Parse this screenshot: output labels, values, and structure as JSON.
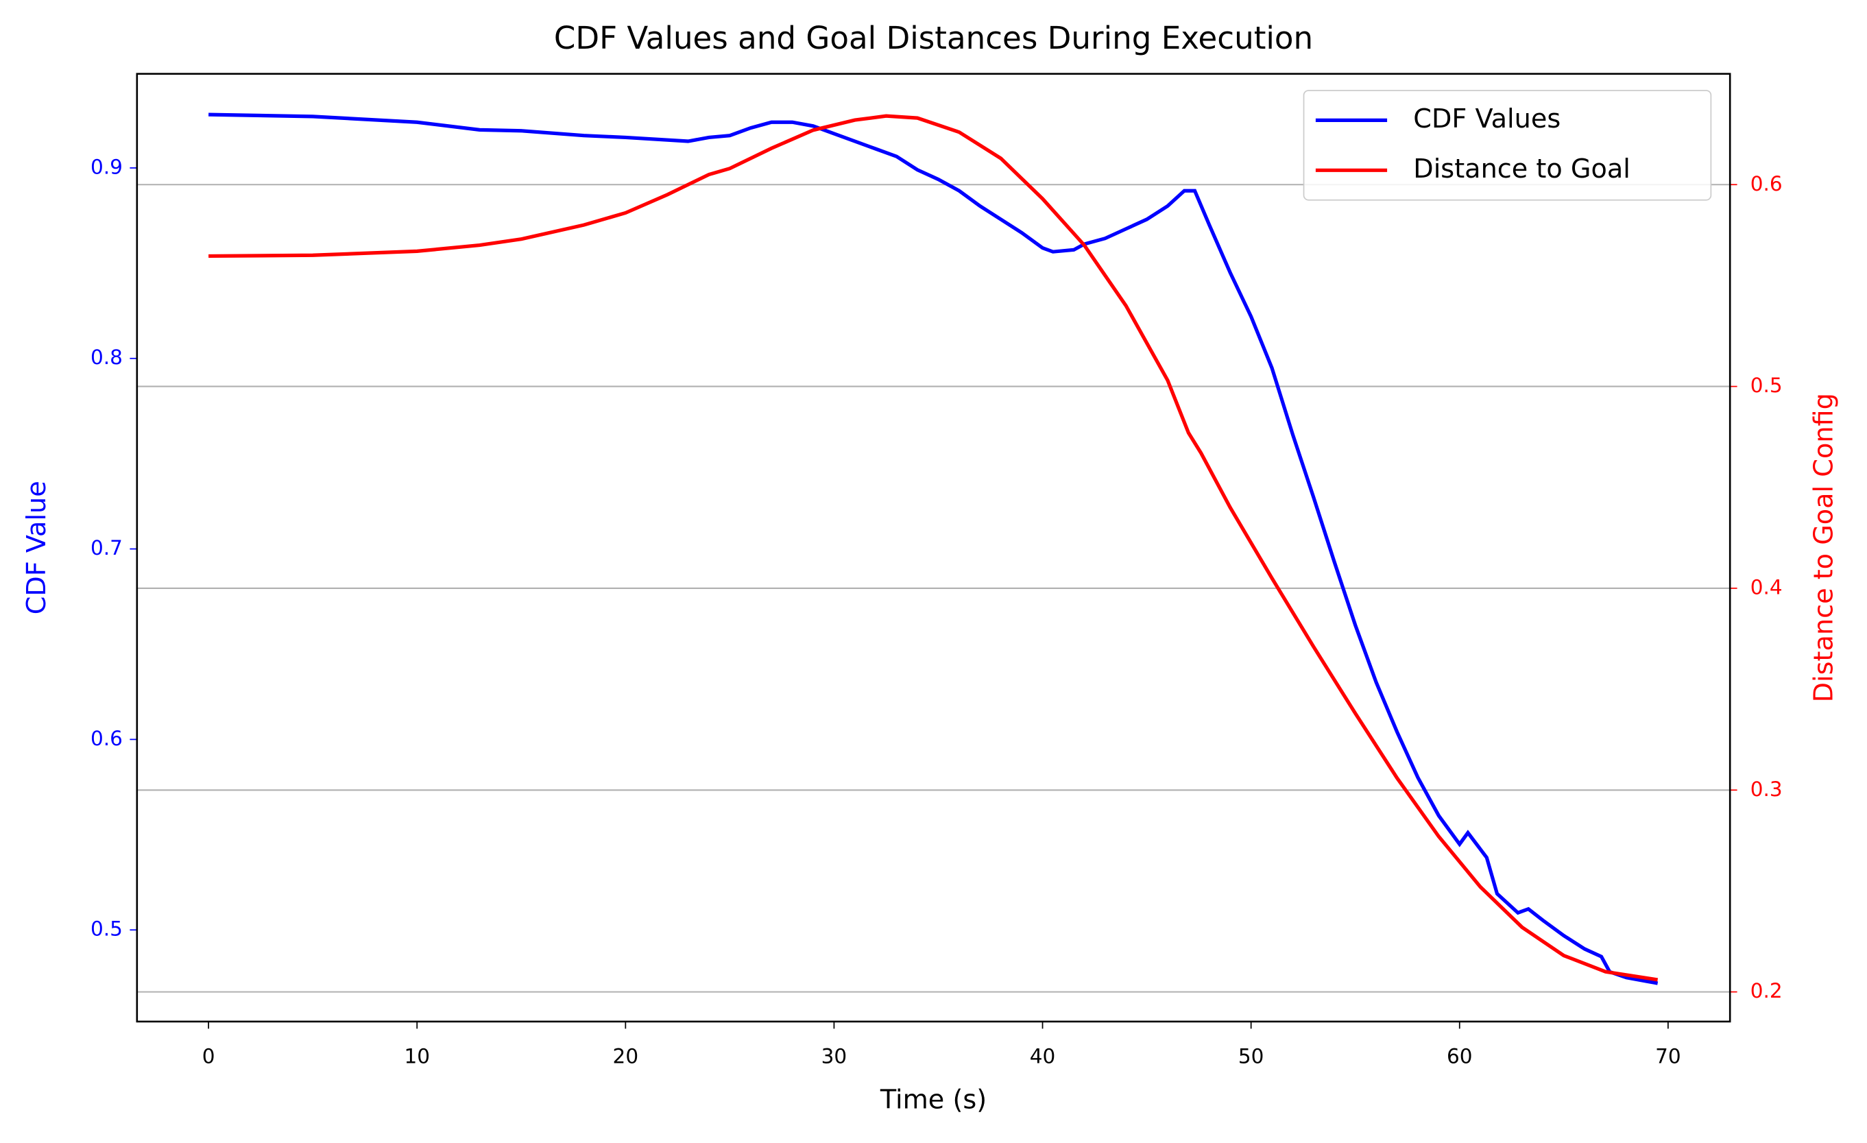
{
  "chart_data": {
    "type": "line",
    "title": "CDF Values and Goal Distances During Execution",
    "xlabel": "Time (s)",
    "ylabel": "CDF Value",
    "y2label": "Distance to Goal Config",
    "ylabel_color": "blue",
    "y2label_color": "red",
    "xlim": [
      -3.43,
      72.97
    ],
    "xticks": [
      0,
      10,
      20,
      30,
      40,
      50,
      60,
      70
    ],
    "ylim": [
      0.4519,
      0.9494
    ],
    "yticks": [
      0.5,
      0.6,
      0.7,
      0.8,
      0.9
    ],
    "y2lim": [
      0.1853,
      0.6549
    ],
    "y2ticks": [
      0.2,
      0.3,
      0.4,
      0.5,
      0.6
    ],
    "grid": "y2",
    "legend": "upper right",
    "series": [
      {
        "name": "CDF Values",
        "color": "blue",
        "x": [
          0,
          5,
          10,
          13,
          15,
          18,
          20,
          23,
          24,
          25,
          26,
          27,
          28,
          29,
          30,
          32,
          33,
          34,
          35,
          36,
          37,
          38,
          39,
          40,
          40.5,
          41.5,
          42,
          43,
          44,
          45,
          46,
          46.8,
          47.3,
          48,
          49,
          50,
          51,
          52,
          53,
          54,
          55,
          56,
          57,
          58,
          59,
          60,
          60.4,
          61.3,
          61.8,
          62.8,
          63.3,
          64,
          65,
          66,
          66.8,
          67.2,
          68,
          69,
          69.5
        ],
        "values": [
          0.928,
          0.927,
          0.924,
          0.92,
          0.9195,
          0.917,
          0.916,
          0.914,
          0.916,
          0.917,
          0.921,
          0.924,
          0.924,
          0.922,
          0.918,
          0.91,
          0.906,
          0.899,
          0.894,
          0.888,
          0.88,
          0.873,
          0.866,
          0.858,
          0.856,
          0.857,
          0.86,
          0.863,
          0.868,
          0.873,
          0.88,
          0.888,
          0.888,
          0.87,
          0.845,
          0.822,
          0.795,
          0.76,
          0.727,
          0.693,
          0.66,
          0.63,
          0.604,
          0.58,
          0.56,
          0.545,
          0.551,
          0.538,
          0.519,
          0.509,
          0.511,
          0.505,
          0.497,
          0.49,
          0.486,
          0.478,
          0.475,
          0.473,
          0.472
        ]
      },
      {
        "name": "Distance to Goal",
        "color": "red",
        "axis": "y2",
        "x": [
          0,
          5,
          10,
          13,
          15,
          18,
          20,
          22,
          24,
          25,
          27,
          29,
          31,
          32.5,
          34,
          36,
          38,
          40,
          42,
          44,
          46,
          47,
          47.6,
          49,
          51,
          53,
          55,
          57,
          59,
          61,
          63,
          65,
          67,
          69.5
        ],
        "values": [
          0.5646,
          0.565,
          0.567,
          0.57,
          0.573,
          0.58,
          0.586,
          0.595,
          0.605,
          0.608,
          0.618,
          0.627,
          0.632,
          0.634,
          0.633,
          0.626,
          0.613,
          0.593,
          0.57,
          0.54,
          0.503,
          0.477,
          0.467,
          0.44,
          0.405,
          0.371,
          0.338,
          0.306,
          0.277,
          0.252,
          0.232,
          0.218,
          0.21,
          0.206
        ]
      }
    ]
  }
}
